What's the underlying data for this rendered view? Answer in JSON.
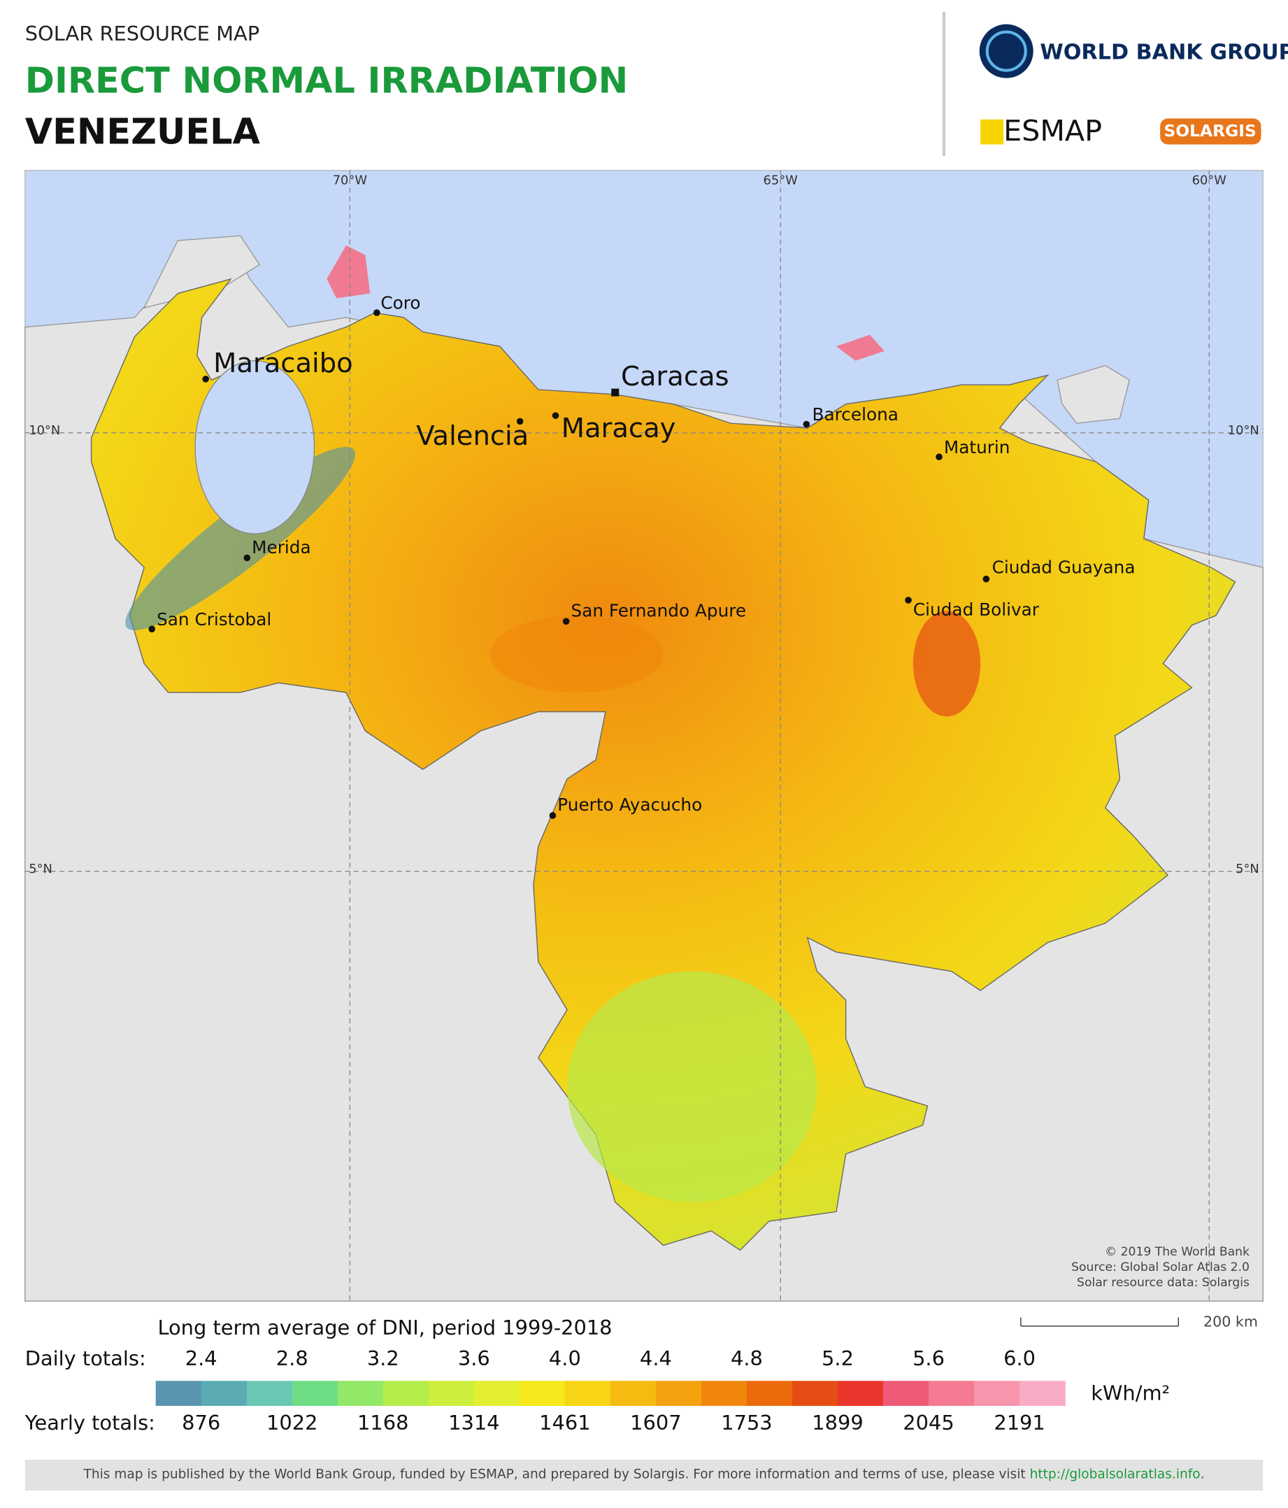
{
  "header": {
    "subtitle": "SOLAR RESOURCE MAP",
    "title": "DIRECT NORMAL IRRADIATION",
    "country": "VENEZUELA"
  },
  "logos": {
    "world_bank": "WORLD BANK GROUP",
    "esmap": "ESMAP",
    "solargis": "SOLARGIS"
  },
  "map": {
    "longitudes": [
      "70°W",
      "65°W",
      "60°W"
    ],
    "latitudes": [
      "10°N",
      "5°N"
    ],
    "cities": [
      "Coro",
      "Maracaibo",
      "Caracas",
      "Valencia",
      "Maracay",
      "Barcelona",
      "Maturin",
      "Merida",
      "San Cristobal",
      "Ciudad Guayana",
      "Ciudad Bolivar",
      "San Fernando Apure",
      "Puerto Ayacucho"
    ],
    "attribution": [
      "© 2019 The World Bank",
      "Source: Global Solar Atlas 2.0",
      "Solar resource data: Solargis"
    ],
    "scale": "200 km"
  },
  "legend": {
    "title": "Long term average of DNI, period 1999-2018",
    "daily_label": "Daily totals:",
    "daily": [
      "2.4",
      "2.8",
      "3.2",
      "3.6",
      "4.0",
      "4.4",
      "4.8",
      "5.2",
      "5.6",
      "6.0"
    ],
    "unit": "kWh/m²",
    "yearly_label": "Yearly totals:",
    "yearly": [
      "876",
      "1022",
      "1168",
      "1314",
      "1461",
      "1607",
      "1753",
      "1899",
      "2045",
      "2191"
    ],
    "colors": [
      "#5a93b0",
      "#5aabb4",
      "#6ac7b4",
      "#6fdc86",
      "#93e868",
      "#b4ec4a",
      "#cdee3c",
      "#e3ef30",
      "#f7e81c",
      "#f7d414",
      "#f5bb10",
      "#f3a20e",
      "#f0870c",
      "#ec6a0a",
      "#e64d14",
      "#e9352c",
      "#ef5a76",
      "#f47a92",
      "#f795ad",
      "#f9acc4"
    ]
  },
  "footer": {
    "text": "This map is published by the World Bank Group, funded by ESMAP, and prepared by Solargis. For more information and terms of use, please visit ",
    "link": "http://globalsolaratlas.info",
    "end": "."
  }
}
